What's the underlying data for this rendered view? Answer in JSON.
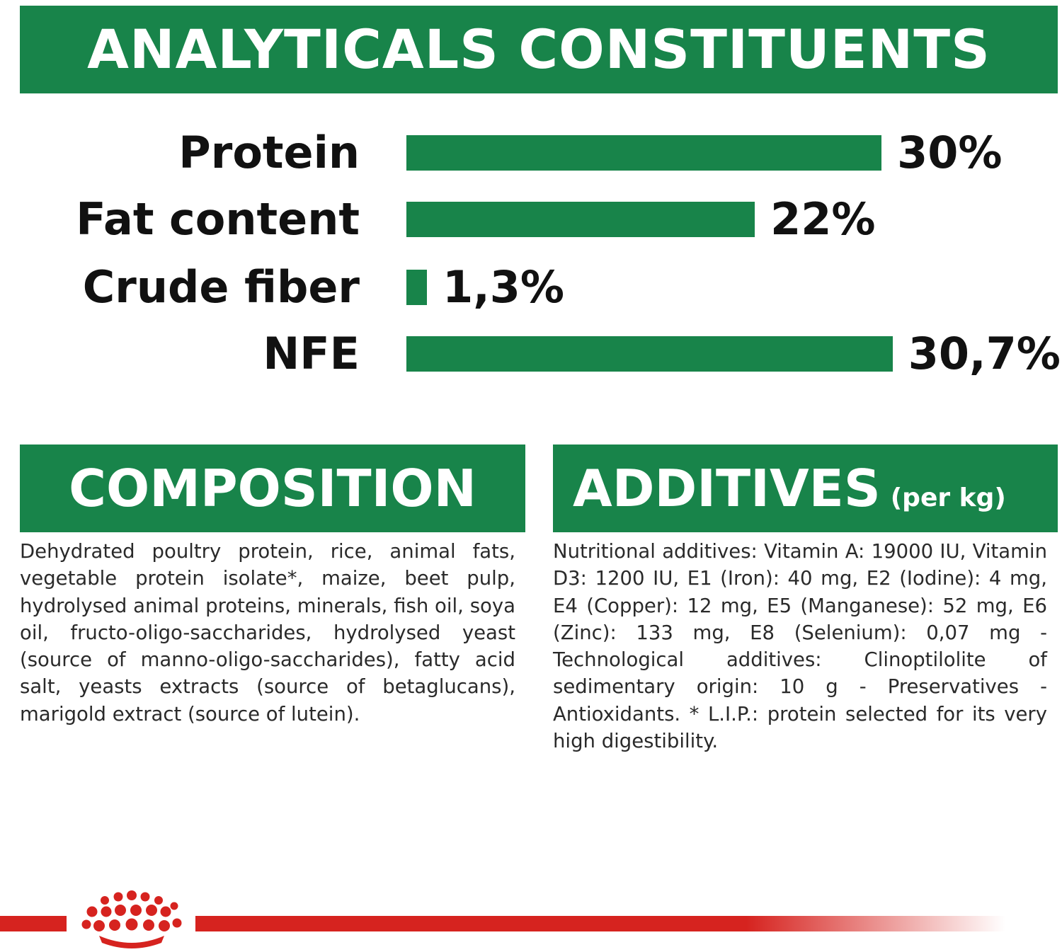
{
  "headers": {
    "analytical": "ANALYTICALS CONSTITUENTS",
    "composition": "COMPOSITION",
    "additives": "ADDITIVES",
    "additives_suffix": "(per kg)"
  },
  "colors": {
    "brand_green": "#18844a",
    "brand_red": "#d6231f",
    "text": "#111111"
  },
  "chart_data": {
    "type": "bar",
    "orientation": "horizontal",
    "categories": [
      "Protein",
      "Fat content",
      "Crude fiber",
      "NFE"
    ],
    "values": [
      30,
      22,
      1.3,
      30.7
    ],
    "value_labels": [
      "30%",
      "22%",
      "1,3%",
      "30,7%"
    ],
    "unit": "%",
    "title": "ANALYTICALS CONSTITUENTS",
    "xlabel": "",
    "ylabel": "",
    "grid": false,
    "legend": "none"
  },
  "composition_text": "Dehydrated poultry protein, rice, animal fats, vegetable protein isolate*, maize, beet pulp, hydrolysed animal proteins, minerals, fish oil, soya oil, fructo-oligo-saccharides, hydrolysed yeast (source of manno-oligo-saccharides), fatty acid salt, yeasts extracts (source of betaglucans), marigold extract (source of lutein).",
  "additives_text": "Nutritional additives: Vitamin A: 19000 IU, Vitamin D3: 1200 IU, E1 (Iron): 40 mg, E2 (Iodine): 4 mg, E4 (Copper): 12 mg, E5 (Manganese): 52 mg, E6 (Zinc): 133 mg, E8 (Selenium): 0,07 mg - Technological additives: Clinoptilolite of sedimentary origin: 10 g - Preservatives - Antioxidants. * L.I.P.: protein selected for its very high digestibility.",
  "footer": {
    "logo_icon": "royal-canin-crown-icon"
  }
}
